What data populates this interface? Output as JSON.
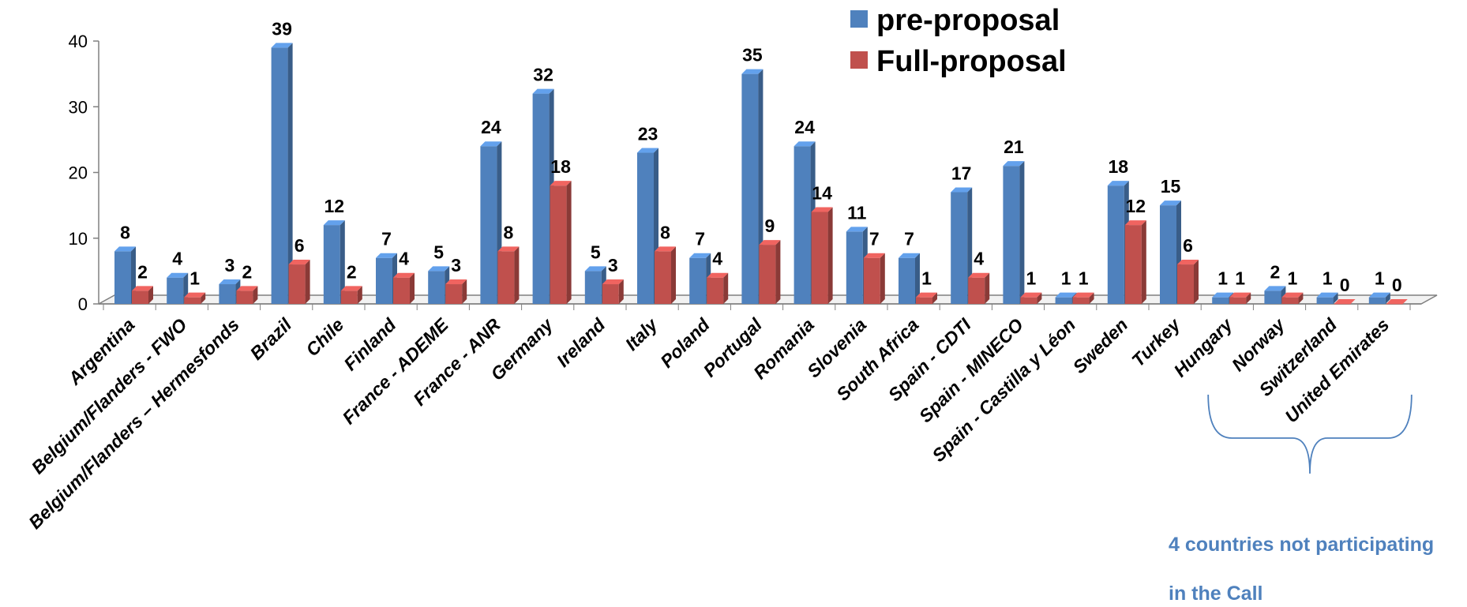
{
  "chart_data": {
    "type": "bar",
    "categories": [
      "Argentina",
      "Belgium/Flanders - FWO",
      "Belgium/Flanders – Hermesfonds",
      "Brazil",
      "Chile",
      "Finland",
      "France - ADEME",
      "France - ANR",
      "Germany",
      "Ireland",
      "Italy",
      "Poland",
      "Portugal",
      "Romania",
      "Slovenia",
      "South Africa",
      "Spain - CDTI",
      "Spain - MINECO",
      "Spain - Castilla y Léon",
      "Sweden",
      "Turkey",
      "Hungary",
      "Norway",
      "Switzerland",
      "United Emirates"
    ],
    "series": [
      {
        "name": "pre-proposal",
        "color": "#4f81bd",
        "values": [
          8,
          4,
          3,
          39,
          12,
          7,
          5,
          24,
          32,
          5,
          23,
          7,
          35,
          24,
          11,
          7,
          17,
          21,
          1,
          18,
          15,
          1,
          2,
          1,
          1
        ]
      },
      {
        "name": "Full-proposal",
        "color": "#c0504d",
        "values": [
          2,
          1,
          2,
          6,
          2,
          4,
          3,
          8,
          18,
          3,
          8,
          4,
          9,
          14,
          7,
          1,
          4,
          1,
          1,
          12,
          6,
          1,
          1,
          0,
          0
        ]
      }
    ],
    "ylim": [
      0,
      40
    ],
    "yticks": [
      0,
      10,
      20,
      30,
      40
    ],
    "grid": false,
    "legend_position": "top-right",
    "annotation": {
      "text_lines": [
        "4 countries not participating",
        "in the Call"
      ],
      "brace_start_category": "Hungary",
      "brace_end_category": "United Emirates"
    }
  }
}
